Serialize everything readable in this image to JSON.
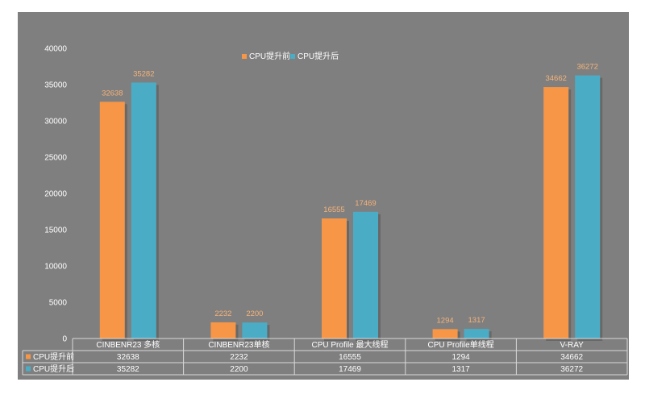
{
  "chart_data": {
    "type": "bar",
    "categories": [
      "CINBENR23 多核",
      "CINBENR23单核",
      "CPU Profile 最大线程",
      "CPU Profile单线程",
      "V-RAY"
    ],
    "series": [
      {
        "name": "CPU提升前",
        "values": [
          32638,
          2232,
          16555,
          1294,
          34662
        ],
        "color": "#f79646"
      },
      {
        "name": "CPU提升后",
        "values": [
          35282,
          2200,
          17469,
          1317,
          36272
        ],
        "color": "#4bacc6"
      }
    ],
    "ylim": [
      0,
      40000
    ],
    "yticks": [
      0,
      5000,
      10000,
      15000,
      20000,
      25000,
      30000,
      35000,
      40000
    ],
    "legend_position": "top-center",
    "data_table": true,
    "grid": false,
    "background": "#7f7f7f"
  }
}
